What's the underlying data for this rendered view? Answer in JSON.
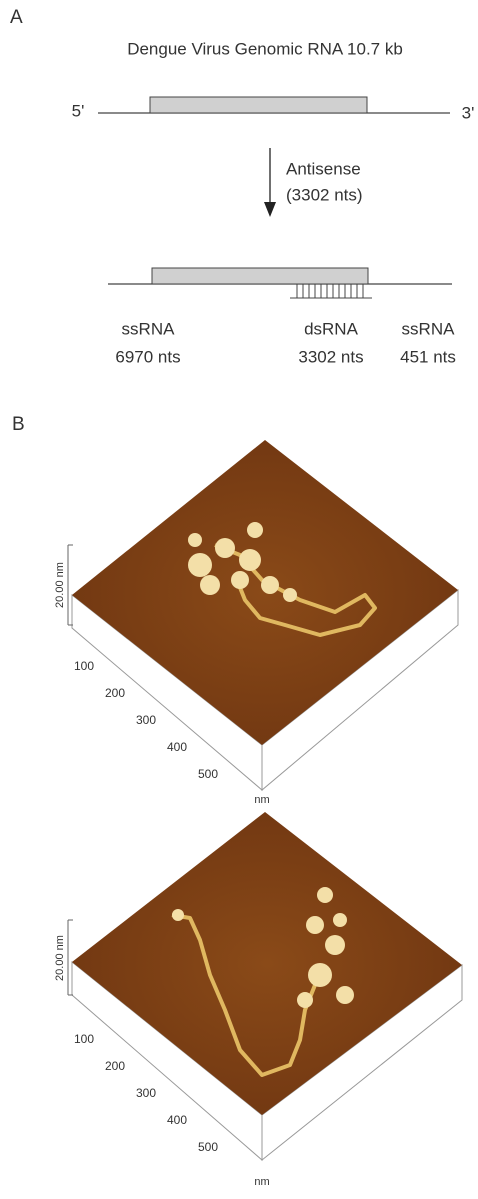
{
  "panel_a": {
    "label": "A",
    "title": "Dengue Virus Genomic RNA 10.7 kb",
    "five_prime": "5'",
    "three_prime": "3'",
    "arrow_label": "Antisense",
    "arrow_sublabel": "(3302 nts)",
    "segments": [
      {
        "name": "ssRNA",
        "length": "6970 nts"
      },
      {
        "name": "dsRNA",
        "length": "3302 nts"
      },
      {
        "name": "ssRNA",
        "length": "451 nts"
      }
    ]
  },
  "panel_b": {
    "label": "B",
    "images": [
      {
        "z_scale": "20.00 nm",
        "ticks": [
          100,
          200,
          300,
          400,
          500
        ],
        "unit": "nm"
      },
      {
        "z_scale": "20.00 nm",
        "ticks": [
          100,
          200,
          300,
          400,
          500
        ],
        "unit": "nm"
      }
    ]
  }
}
